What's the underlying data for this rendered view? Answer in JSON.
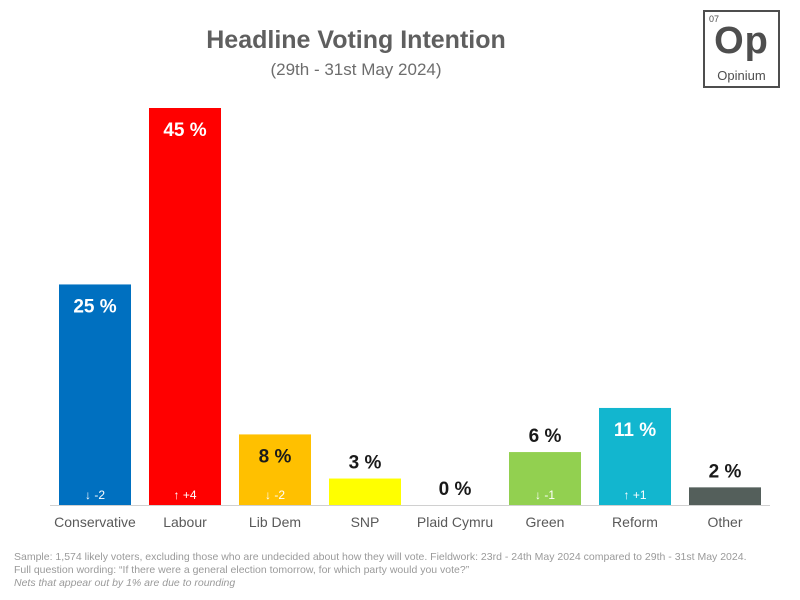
{
  "header": {
    "title": "Headline Voting Intention",
    "subtitle": "(29th - 31st May 2024)"
  },
  "logo": {
    "number": "07",
    "symbol": "Op",
    "name": "Opinium"
  },
  "chart_data": {
    "type": "bar",
    "categories": [
      "Conservative",
      "Labour",
      "Lib Dem",
      "SNP",
      "Plaid Cymru",
      "Green",
      "Reform",
      "Other"
    ],
    "values": [
      25,
      45,
      8,
      3,
      0,
      6,
      11,
      2
    ],
    "value_labels": [
      "25 %",
      "45 %",
      "8 %",
      "3 %",
      "0 %",
      "6 %",
      "11 %",
      "2 %"
    ],
    "changes": [
      "↓ -2",
      "↑ +4",
      "↓ -2",
      "",
      "",
      "↓ -1",
      "↑ +1",
      ""
    ],
    "colors": [
      "#0070c0",
      "#ff0000",
      "#ffc000",
      "#ffff00",
      "#3f8428",
      "#92d050",
      "#12b6cf",
      "#545f5b"
    ],
    "title": "Headline Voting Intention",
    "subtitle": "(29th - 31st May 2024)",
    "ylim": [
      0,
      45
    ],
    "grid": false,
    "legend": "none"
  },
  "footer": {
    "sample": "Sample: 1,574 likely voters, excluding those who are undecided about how they will vote. Fieldwork: 23rd - 24th May 2024 compared to 29th - 31st May 2024.",
    "question": "Full question wording: “If there were a general election tomorrow, for which party would you vote?”",
    "note": "Nets that appear out by 1% are due to rounding"
  }
}
